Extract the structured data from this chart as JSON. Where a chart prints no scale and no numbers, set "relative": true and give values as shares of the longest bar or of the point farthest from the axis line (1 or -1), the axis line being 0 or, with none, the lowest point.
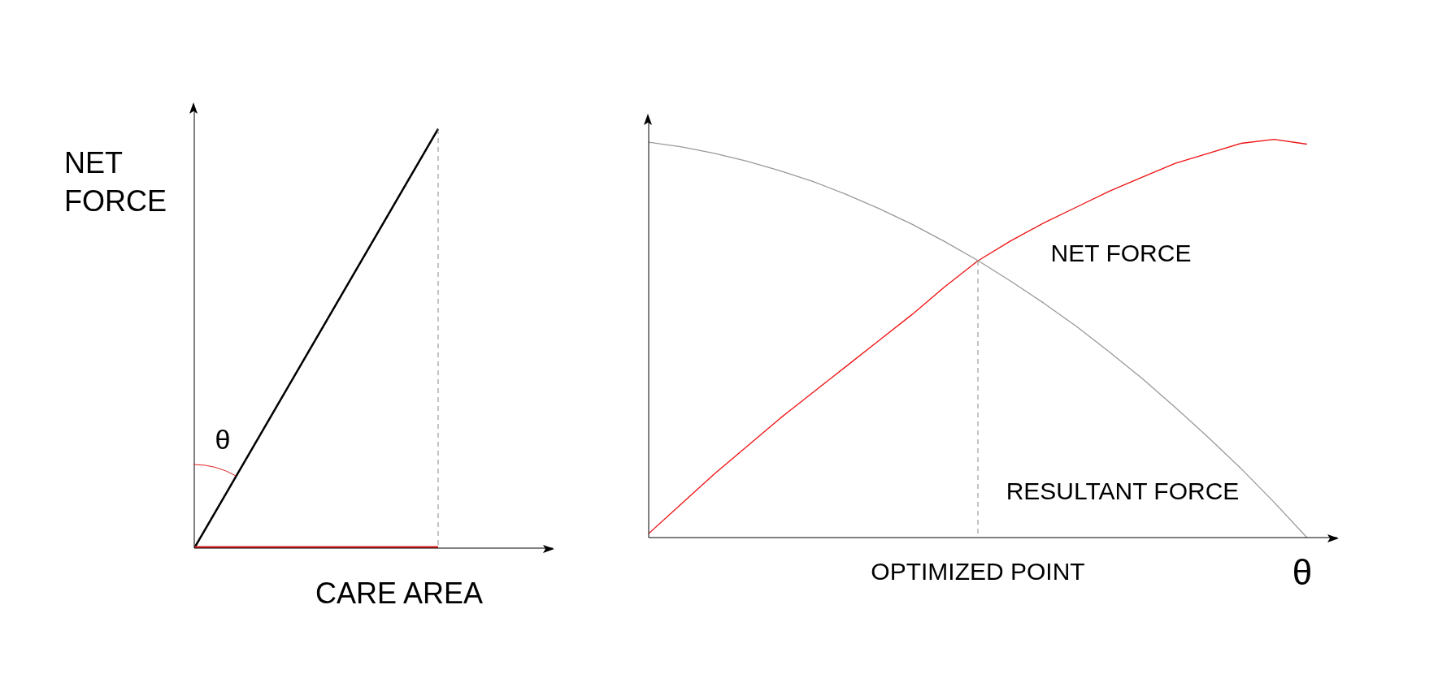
{
  "chart_data": [
    {
      "type": "line",
      "relative": true,
      "ylabel": "NET FORCE",
      "xlabel": "CARE AREA",
      "categories": [
        null,
        null
      ],
      "marker": "none",
      "series": [
        {
          "color": "#000000",
          "values": [
            0,
            1
          ]
        },
        {
          "color": "#e02020",
          "values": [
            0,
            0
          ]
        }
      ],
      "annotations": [
        "θ"
      ]
    },
    {
      "type": "line",
      "relative": true,
      "xlabel": "θ",
      "categories": [
        null,
        null,
        null,
        null,
        null,
        null,
        null,
        null,
        null,
        null,
        null,
        null,
        null,
        null,
        null,
        null,
        null,
        null,
        null,
        null,
        null
      ],
      "marker": "none",
      "series": [
        {
          "name": "NET FORCE",
          "color": "#ee1111",
          "values": [
            0.01,
            0.085,
            0.16,
            0.23,
            0.3,
            0.365,
            0.43,
            0.495,
            0.56,
            0.63,
            0.695,
            0.745,
            0.79,
            0.83,
            0.87,
            0.905,
            0.94,
            0.965,
            0.99,
            1.0,
            0.988
          ]
        },
        {
          "name": "RESULTANT FORCE",
          "color": "#999999",
          "values": [
            0.993,
            0.981,
            0.965,
            0.945,
            0.921,
            0.894,
            0.862,
            0.826,
            0.787,
            0.743,
            0.696,
            0.644,
            0.589,
            0.53,
            0.466,
            0.399,
            0.327,
            0.252,
            0.173,
            0.089,
            0
          ]
        }
      ],
      "annotations": [
        "OPTIMIZED POINT"
      ]
    }
  ]
}
